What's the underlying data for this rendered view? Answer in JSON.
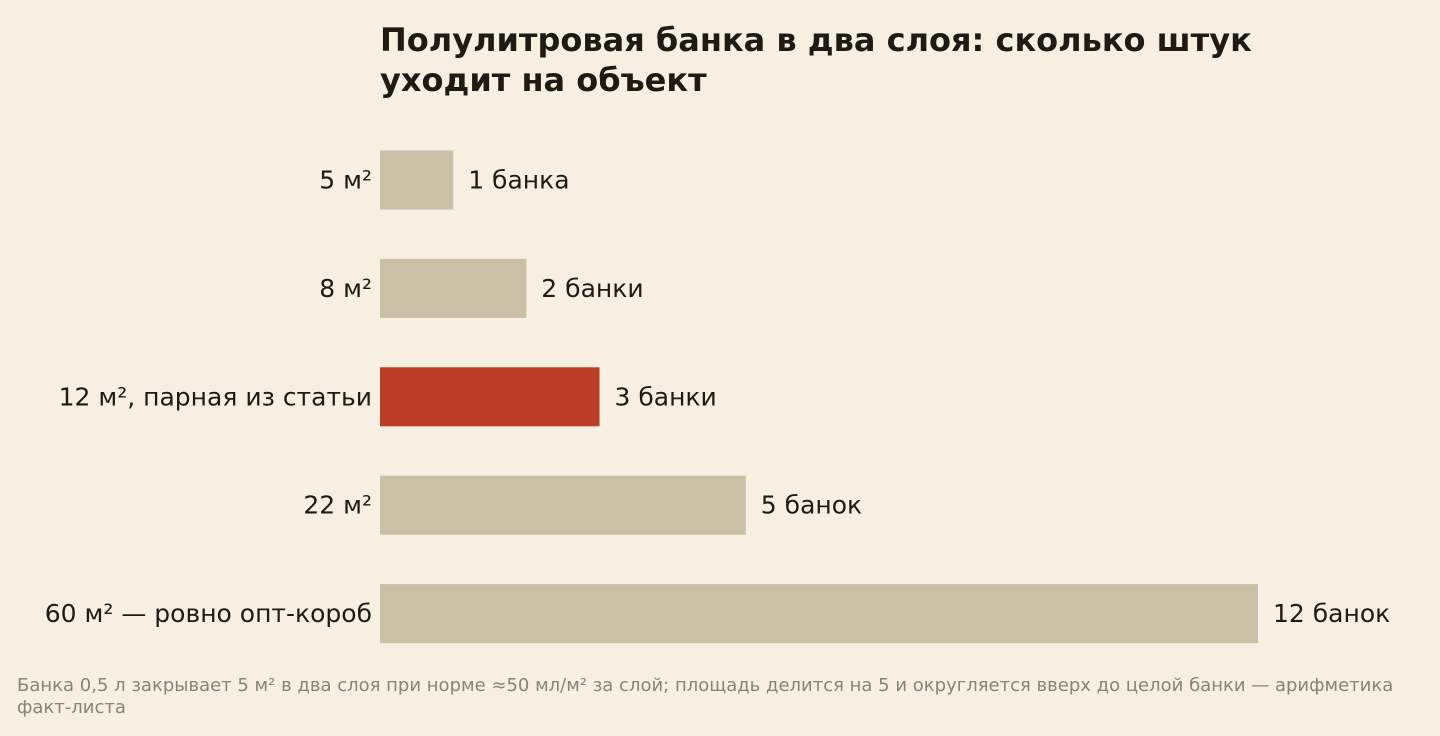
{
  "colors": {
    "background": "#f6efe2",
    "bar_default": "#c9c0a7",
    "bar_highlight": "#bc3d27",
    "text": "#1f1a14",
    "footnote": "#8a8275"
  },
  "chart_data": {
    "type": "bar",
    "orientation": "horizontal",
    "title": "Полулитровая банка в два слоя: сколько штук уходит на объект",
    "xlabel": "",
    "ylabel": "",
    "xlim": [
      0,
      12
    ],
    "grid": false,
    "legend": "none",
    "categories": [
      "5 м²",
      "8 м²",
      "12 м², парная из статьи",
      "22 м²",
      "60 м² — ровно опт-короб"
    ],
    "values": [
      1,
      2,
      3,
      5,
      12
    ],
    "value_labels": [
      "1 банка",
      "2 банки",
      "3 банки",
      "5 банок",
      "12 банок"
    ],
    "highlight_index": 2
  },
  "footnote": "Банка 0,5 л закрывает 5 м² в два слоя при норме ≈50 мл/м² за слой; площадь делится на 5 и округляется вверх до целой банки — арифметика факт-листа"
}
